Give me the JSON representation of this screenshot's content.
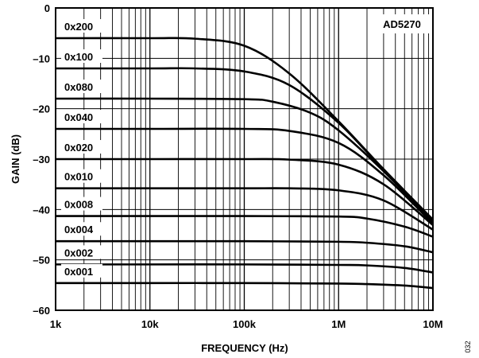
{
  "chart_data": {
    "type": "line",
    "title": "",
    "xlabel": "FREQUENCY (Hz)",
    "ylabel": "GAIN (dB)",
    "x_scale": "log",
    "xlim": [
      1000,
      10000000
    ],
    "ylim": [
      -60,
      0
    ],
    "x_ticks": [
      {
        "value": 1000,
        "label": "1k"
      },
      {
        "value": 10000,
        "label": "10k"
      },
      {
        "value": 100000,
        "label": "100k"
      },
      {
        "value": 1000000,
        "label": "1M"
      },
      {
        "value": 10000000,
        "label": "10M"
      }
    ],
    "y_ticks": [
      {
        "value": 0,
        "label": "0"
      },
      {
        "value": -10,
        "label": "–10"
      },
      {
        "value": -20,
        "label": "–20"
      },
      {
        "value": -30,
        "label": "–30"
      },
      {
        "value": -40,
        "label": "–40"
      },
      {
        "value": -50,
        "label": "–50"
      },
      {
        "value": -60,
        "label": "–60"
      }
    ],
    "grid": true,
    "annotation": "AD5270",
    "figure_id": "032",
    "series": [
      {
        "name": "0x200",
        "x": [
          1000,
          10000,
          30000,
          100000,
          300000,
          1000000,
          3000000,
          10000000
        ],
        "y": [
          -6.0,
          -6.0,
          -6.1,
          -7.5,
          -13.0,
          -22.5,
          -32.0,
          -42.0
        ]
      },
      {
        "name": "0x100",
        "x": [
          1000,
          10000,
          30000,
          100000,
          300000,
          1000000,
          3000000,
          10000000
        ],
        "y": [
          -12.0,
          -12.0,
          -12.0,
          -12.6,
          -15.3,
          -22.8,
          -32.2,
          -42.3
        ]
      },
      {
        "name": "0x080",
        "x": [
          1000,
          10000,
          100000,
          200000,
          500000,
          1000000,
          3000000,
          10000000
        ],
        "y": [
          -18.0,
          -18.0,
          -18.1,
          -18.6,
          -20.8,
          -24.3,
          -32.4,
          -42.5
        ]
      },
      {
        "name": "0x040",
        "x": [
          1000,
          10000,
          100000,
          300000,
          1000000,
          3000000,
          10000000
        ],
        "y": [
          -24.0,
          -24.0,
          -24.0,
          -24.4,
          -26.8,
          -33.2,
          -42.8
        ]
      },
      {
        "name": "0x020",
        "x": [
          1000,
          10000,
          100000,
          300000,
          1000000,
          3000000,
          10000000
        ],
        "y": [
          -30.0,
          -30.0,
          -30.0,
          -30.1,
          -31.1,
          -35.0,
          -43.1
        ]
      },
      {
        "name": "0x010",
        "x": [
          1000,
          10000,
          100000,
          300000,
          1000000,
          3000000,
          10000000
        ],
        "y": [
          -35.8,
          -35.8,
          -35.8,
          -35.8,
          -36.2,
          -38.2,
          -44.0
        ]
      },
      {
        "name": "0x008",
        "x": [
          1000,
          10000,
          100000,
          1000000,
          2000000,
          5000000,
          10000000
        ],
        "y": [
          -41.3,
          -41.3,
          -41.3,
          -41.4,
          -41.8,
          -43.4,
          -45.4
        ]
      },
      {
        "name": "0x004",
        "x": [
          1000,
          10000,
          100000,
          1000000,
          2000000,
          5000000,
          10000000
        ],
        "y": [
          -46.3,
          -46.3,
          -46.3,
          -46.4,
          -46.6,
          -47.3,
          -48.5
        ]
      },
      {
        "name": "0x002",
        "x": [
          1000,
          10000,
          100000,
          1000000,
          2000000,
          5000000,
          10000000
        ],
        "y": [
          -50.9,
          -50.9,
          -50.9,
          -51.0,
          -51.1,
          -51.6,
          -52.5
        ]
      },
      {
        "name": "0x001",
        "x": [
          1000,
          10000,
          100000,
          1000000,
          2000000,
          5000000,
          10000000
        ],
        "y": [
          -54.6,
          -54.6,
          -54.6,
          -54.7,
          -54.8,
          -55.1,
          -55.6
        ]
      }
    ]
  }
}
